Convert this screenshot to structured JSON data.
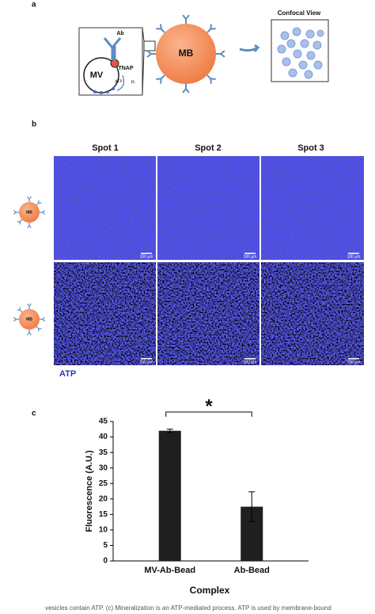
{
  "panel_a": {
    "label": "a",
    "antibody": "Ab",
    "vesicle": "MV",
    "enzyme": "TNAP",
    "substrate": "ATP",
    "product": "Pi",
    "bead": "MB",
    "view_title": "Confocal View"
  },
  "panel_b": {
    "label": "b",
    "columns": [
      "Spot 1",
      "Spot 2",
      "Spot 3"
    ],
    "scale_bar": "100 µm",
    "stain": "ATP"
  },
  "chart_data": {
    "type": "bar",
    "label": "c",
    "categories": [
      "MV-Ab-Bead",
      "Ab-Bead"
    ],
    "values": [
      42,
      17.5
    ],
    "errors": [
      0.5,
      4.8
    ],
    "color": "#1f1f1f",
    "ylim": [
      0,
      45
    ],
    "yticks": [
      0,
      5,
      10,
      15,
      20,
      25,
      30,
      35,
      40,
      45
    ],
    "y_label": "Fluorescence (A.U.)",
    "x_label": "Complex",
    "annotation": "*"
  },
  "caption": "vesicles contain ATP. (c) Mineralization is an ATP-mediated process. ATP is used by membrane-bound"
}
